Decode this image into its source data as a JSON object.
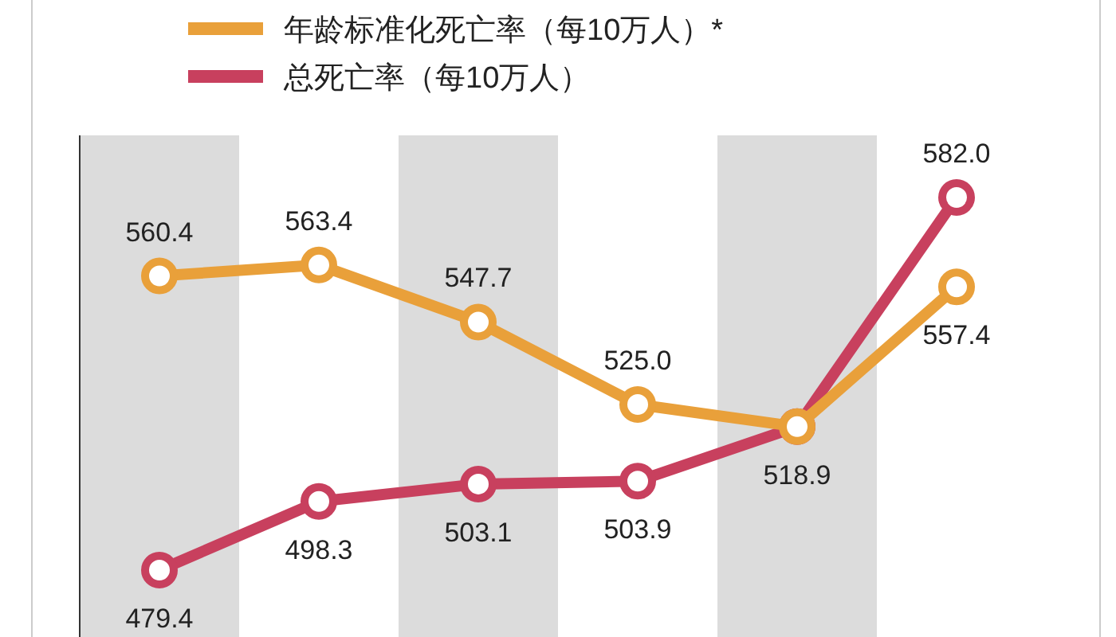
{
  "chart_data": {
    "type": "line",
    "categories": [
      null,
      null,
      null,
      null,
      null,
      null
    ],
    "series": [
      {
        "name": "年龄标准化死亡率（每10万人）*",
        "color": "#e9a03a",
        "values": [
          560.4,
          563.4,
          547.7,
          525.0,
          518.9,
          557.4
        ],
        "value_labels": [
          "560.4",
          "563.4",
          "547.7",
          "525.0",
          null,
          "557.4"
        ]
      },
      {
        "name": "总死亡率（每10万人）",
        "color": "#c8405e",
        "values": [
          479.4,
          498.3,
          503.1,
          503.9,
          518.9,
          582.0
        ],
        "value_labels": [
          "479.4",
          "498.3",
          "503.1",
          "503.9",
          "518.9",
          "582.0"
        ]
      }
    ],
    "marker": "circle",
    "line_style": "solid",
    "legend": "top left"
  }
}
